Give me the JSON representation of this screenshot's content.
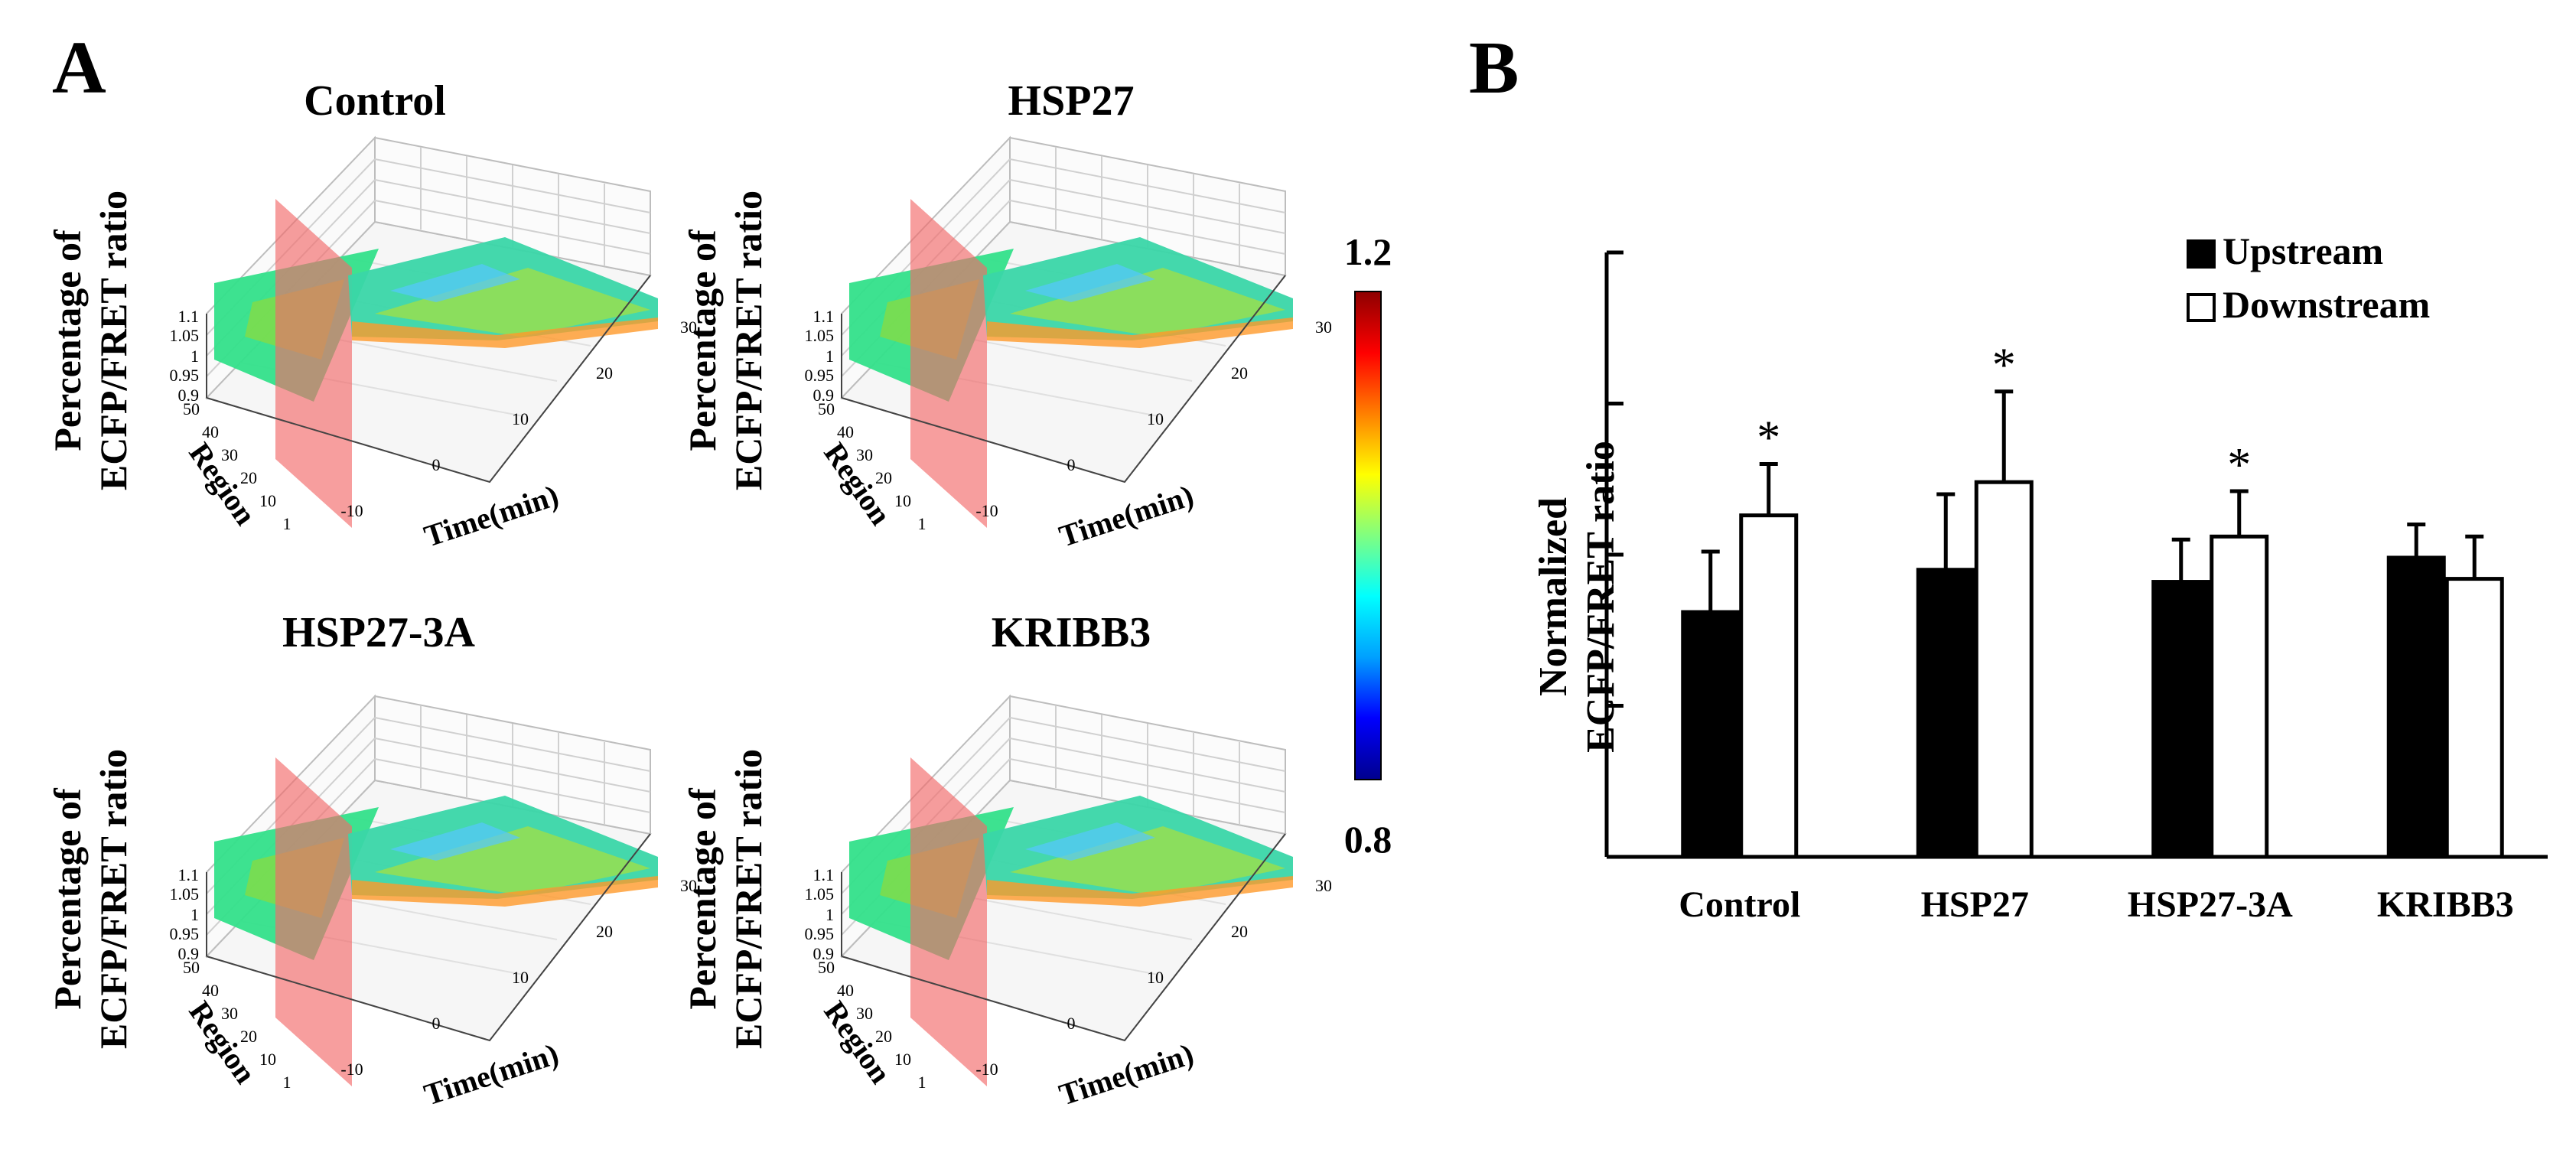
{
  "panel_a": {
    "letter": "A",
    "colorbar": {
      "max_label": "1.2",
      "min_label": "0.8",
      "colors": [
        "#00008f",
        "#0000ff",
        "#00a0ff",
        "#00ffff",
        "#80ff80",
        "#ffff00",
        "#ff8000",
        "#ff0000",
        "#8f0000"
      ]
    },
    "plots": [
      {
        "title": "Control",
        "ylabel_line1": "Percentage of",
        "ylabel_line2": "ECFP/FRET ratio",
        "z_ticks": [
          "1.1",
          "1.05",
          "1",
          "0.95",
          "0.9"
        ],
        "region_ticks": [
          "50",
          "40",
          "30",
          "20",
          "10",
          "1"
        ],
        "region_label": "Region",
        "time_ticks": [
          "-10",
          "0",
          "10",
          "20",
          "30"
        ],
        "time_label": "Time(min)"
      },
      {
        "title": "HSP27",
        "ylabel_line1": "Percentage of",
        "ylabel_line2": "ECFP/FRET ratio",
        "z_ticks": [
          "1.1",
          "1.05",
          "1",
          "0.95",
          "0.9"
        ],
        "region_ticks": [
          "50",
          "40",
          "30",
          "20",
          "10",
          "1"
        ],
        "region_label": "Region",
        "time_ticks": [
          "-10",
          "0",
          "10",
          "20",
          "30"
        ],
        "time_label": "Time(min)"
      },
      {
        "title": "HSP27-3A",
        "ylabel_line1": "Percentage of",
        "ylabel_line2": "ECFP/FRET ratio",
        "z_ticks": [
          "1.1",
          "1.05",
          "1",
          "0.95",
          "0.9"
        ],
        "region_ticks": [
          "50",
          "40",
          "30",
          "20",
          "10",
          "1"
        ],
        "region_label": "Region",
        "time_ticks": [
          "-10",
          "0",
          "10",
          "20",
          "30"
        ],
        "time_label": "Time(min)"
      },
      {
        "title": "KRIBB3",
        "ylabel_line1": "Percentage of",
        "ylabel_line2": "ECFP/FRET ratio",
        "z_ticks": [
          "1.1",
          "1.05",
          "1",
          "0.95",
          "0.9"
        ],
        "region_ticks": [
          "50",
          "40",
          "30",
          "20",
          "10",
          "1"
        ],
        "region_label": "Region",
        "time_ticks": [
          "-10",
          "0",
          "10",
          "20",
          "30"
        ],
        "time_label": "Time(min)"
      }
    ]
  },
  "panel_b": {
    "letter": "B",
    "ylabel_line1": "Normalized",
    "ylabel_line2": "ECFP/FRET ratio"
  },
  "chart_data": {
    "type": "bar",
    "categories": [
      "Control",
      "HSP27",
      "HSP27-3A",
      "KRIBB3"
    ],
    "series": [
      {
        "name": "Upstream",
        "fill": "#000000",
        "values": [
          0.981,
          0.995,
          0.991,
          0.999
        ],
        "errors": [
          0.02,
          0.025,
          0.014,
          0.011
        ]
      },
      {
        "name": "Downstream",
        "fill": "#ffffff",
        "values": [
          1.013,
          1.024,
          1.006,
          0.992
        ],
        "errors": [
          0.017,
          0.03,
          0.015,
          0.014
        ]
      }
    ],
    "significance": [
      "*",
      "*",
      "*",
      ""
    ],
    "ylim": [
      0.9,
      1.1
    ],
    "yticks": [
      "0.9",
      "0.95",
      "1",
      "1.05",
      "1.1"
    ],
    "legend": "top-right"
  }
}
